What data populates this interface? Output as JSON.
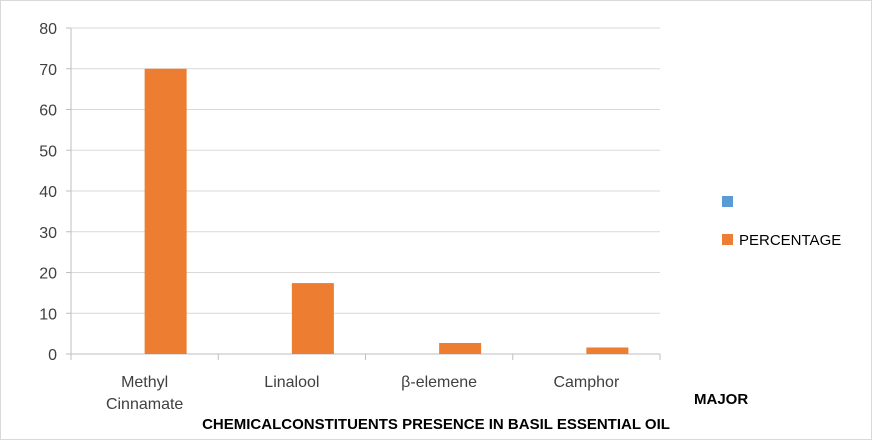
{
  "chart_data": {
    "type": "bar",
    "categories": [
      [
        "Methyl",
        "Cinnamate"
      ],
      [
        "Linalool"
      ],
      [
        "β-elemene"
      ],
      [
        "Camphor"
      ]
    ],
    "series": [
      {
        "name": "",
        "color": "#5b9bd5",
        "values": [
          0,
          0,
          0,
          0
        ]
      },
      {
        "name": "PERCENTAGE",
        "color": "#ed7d31",
        "values": [
          70,
          17.4,
          2.7,
          1.6
        ]
      }
    ],
    "ylim": [
      0,
      80
    ],
    "yticks": [
      0,
      10,
      20,
      30,
      40,
      50,
      60,
      70,
      80
    ],
    "grid": true,
    "legend_position": "right",
    "xlabel_line1": "MAJOR",
    "xlabel_line2": "CHEMICALCONSTITUENTS PRESENCE IN BASIL ESSENTIAL OIL"
  }
}
